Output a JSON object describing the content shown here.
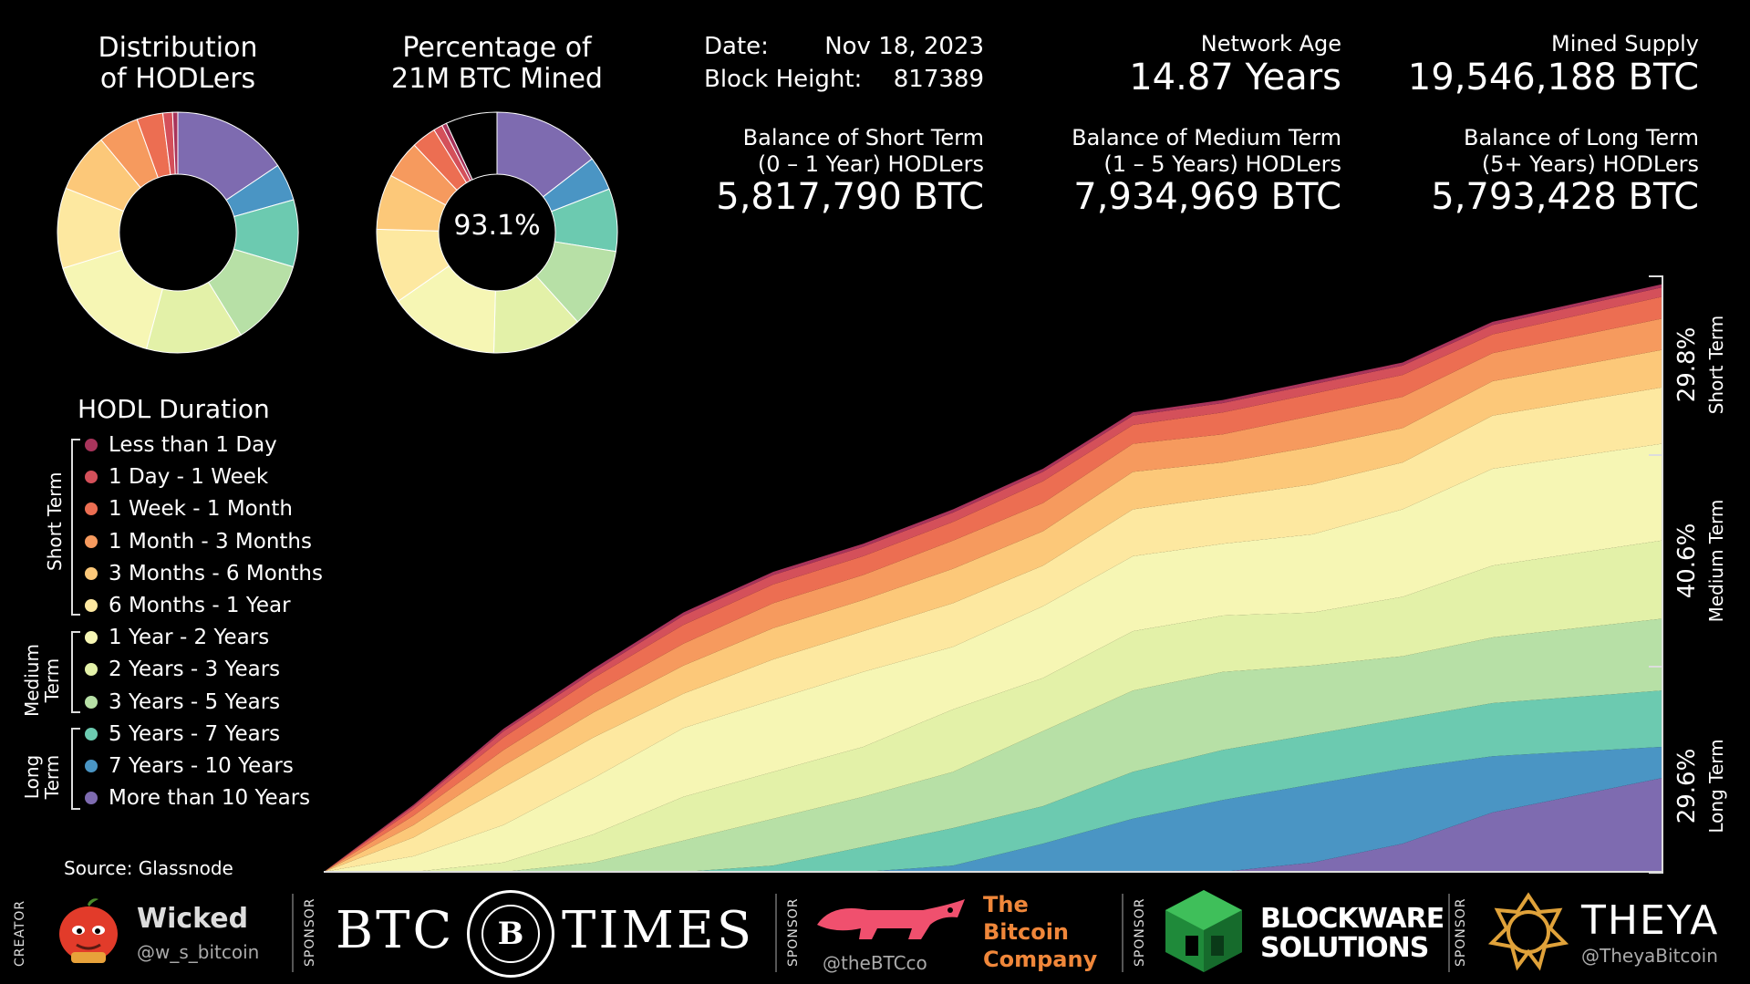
{
  "header": {
    "dist_title_line1": "Distribution",
    "dist_title_line2": "of HODLers",
    "pct_title_line1": "Percentage of",
    "pct_title_line2": "21M BTC Mined",
    "pct_center": "93.1%",
    "date_label": "Date:",
    "date_value": "Nov 18, 2023",
    "block_label": "Block Height:",
    "block_value": "817389",
    "network_age_label": "Network Age",
    "network_age_value": "14.87 Years",
    "mined_supply_label": "Mined Supply",
    "mined_supply_value": "19,546,188 BTC",
    "short_label_1": "Balance of Short Term",
    "short_label_2": "(0 – 1 Year) HODLers",
    "short_value": "5,817,790 BTC",
    "medium_label_1": "Balance of Medium Term",
    "medium_label_2": "(1 – 5 Years) HODLers",
    "medium_value": "7,934,969 BTC",
    "long_label_1": "Balance of Long Term",
    "long_label_2": "(5+ Years) HODLers",
    "long_value": "5,793,428 BTC"
  },
  "legend": {
    "title": "HODL Duration",
    "groups": [
      "Short Term",
      "Medium",
      "Term",
      "Long",
      "Term"
    ],
    "items": [
      {
        "label": "Less than 1 Day",
        "color": "#a8345b"
      },
      {
        "label": "1 Day - 1 Week",
        "color": "#d4505a"
      },
      {
        "label": "1 Week - 1 Month",
        "color": "#ec6e52"
      },
      {
        "label": "1 Month - 3 Months",
        "color": "#f69a5e"
      },
      {
        "label": "3 Months - 6 Months",
        "color": "#fcc879"
      },
      {
        "label": "6 Months - 1 Year",
        "color": "#fde8a0"
      },
      {
        "label": "1 Year - 2 Years",
        "color": "#f6f6b4"
      },
      {
        "label": "2 Years - 3 Years",
        "color": "#e3f1a8"
      },
      {
        "label": "3 Years - 5 Years",
        "color": "#b7e0a6"
      },
      {
        "label": "5 Years - 7 Years",
        "color": "#6ccab0"
      },
      {
        "label": "7 Years - 10 Years",
        "color": "#4a95c4"
      },
      {
        "label": "More than 10 Years",
        "color": "#7e6bb0"
      }
    ]
  },
  "source": "Source: Glassnode",
  "right_axis": {
    "short_pct": "29.8%",
    "short_name": "Short Term",
    "medium_pct": "40.6%",
    "medium_name": "Medium Term",
    "long_pct": "29.6%",
    "long_name": "Long Term"
  },
  "footer": {
    "creator_tag": "CREATOR",
    "creator_name": "Wicked",
    "creator_handle": "@w_s_bitcoin",
    "sponsor_tag": "SPONSOR",
    "btctimes_left": "BTC",
    "btctimes_right": "TIMES",
    "btctimes_emblem": "B",
    "btc_co_1": "The",
    "btc_co_2": "Bitcoin",
    "btc_co_3": "Company",
    "btc_co_handle": "@theBTCco",
    "blockware_1": "BLOCKWARE",
    "blockware_2": "SOLUTIONS",
    "theya_name": "THEYA",
    "theya_handle": "@TheyaBitcoin"
  },
  "chart_data": [
    {
      "type": "pie",
      "title": "",
      "categories": [
        "Less than 1 Day",
        "1 Day - 1 Week",
        "1 Week - 1 Month",
        "1 Month - 3 Months",
        "3 Months - 6 Months",
        "6 Months - 1 Year",
        "1 Year - 2 Years",
        "2 Years - 3 Years",
        "3 Years - 5 Years",
        "5 Years - 7 Years",
        "7 Years - 10 Years",
        "More than 10 Years"
      ],
      "values": [
        0.7,
        1.3,
        3.5,
        5.5,
        8.0,
        10.8,
        16.0,
        13.0,
        11.6,
        9.0,
        5.0,
        15.6
      ],
      "colors": [
        "#a8345b",
        "#d4505a",
        "#ec6e52",
        "#f69a5e",
        "#fcc879",
        "#fde8a0",
        "#f6f6b4",
        "#e3f1a8",
        "#b7e0a6",
        "#6ccab0",
        "#4a95c4",
        "#7e6bb0"
      ]
    },
    {
      "type": "pie",
      "title": "",
      "categories": [
        "Less than 1 Day",
        "1 Day - 1 Week",
        "1 Week - 1 Month",
        "1 Month - 3 Months",
        "3 Months - 6 Months",
        "6 Months - 1 Year",
        "1 Year - 2 Years",
        "2 Years - 3 Years",
        "3 Years - 5 Years",
        "5 Years - 7 Years",
        "7 Years - 10 Years",
        "More than 10 Years",
        "Unmined"
      ],
      "values": [
        0.65,
        1.2,
        3.3,
        5.1,
        7.4,
        10.1,
        14.9,
        12.1,
        10.8,
        8.4,
        4.6,
        14.5,
        6.9
      ],
      "colors": [
        "#a8345b",
        "#d4505a",
        "#ec6e52",
        "#f69a5e",
        "#fcc879",
        "#fde8a0",
        "#f6f6b4",
        "#e3f1a8",
        "#b7e0a6",
        "#6ccab0",
        "#4a95c4",
        "#7e6bb0",
        "#000000"
      ]
    },
    {
      "type": "area",
      "title": "",
      "x": [
        2009,
        2010,
        2011,
        2012,
        2013,
        2014,
        2015,
        2016,
        2017,
        2018,
        2019,
        2020,
        2021,
        2022,
        2023.88
      ],
      "series": [
        {
          "name": "More than 10 Years",
          "values": [
            0,
            0,
            0,
            0,
            0,
            0,
            0,
            0,
            0,
            0,
            0,
            0.3,
            0.9,
            1.9,
            3.0
          ]
        },
        {
          "name": "7 Years - 10 Years",
          "values": [
            0,
            0,
            0,
            0,
            0,
            0,
            0,
            0.2,
            0.9,
            1.7,
            2.3,
            2.5,
            2.4,
            1.8,
            1.0
          ]
        },
        {
          "name": "5 Years - 7 Years",
          "values": [
            0,
            0,
            0,
            0,
            0,
            0.2,
            0.8,
            1.2,
            1.2,
            1.5,
            1.6,
            1.6,
            1.6,
            1.7,
            1.8
          ]
        },
        {
          "name": "3 Years - 5 Years",
          "values": [
            0,
            0,
            0,
            0.3,
            1.0,
            1.5,
            1.6,
            1.8,
            2.4,
            2.6,
            2.5,
            2.2,
            2.0,
            2.1,
            2.3
          ]
        },
        {
          "name": "2 Years - 3 Years",
          "values": [
            0,
            0,
            0.3,
            0.9,
            1.4,
            1.5,
            1.6,
            2.0,
            1.7,
            1.9,
            1.8,
            1.7,
            1.9,
            2.3,
            2.5
          ]
        },
        {
          "name": "1 Year - 2 Years",
          "values": [
            0,
            0.5,
            1.2,
            1.8,
            2.2,
            2.3,
            2.4,
            2.0,
            2.3,
            2.4,
            2.3,
            2.5,
            2.8,
            3.1,
            3.1
          ]
        },
        {
          "name": "6 Months - 1 Year",
          "values": [
            0,
            0.6,
            1.2,
            1.3,
            1.1,
            1.3,
            1.3,
            1.4,
            1.3,
            1.5,
            1.5,
            1.6,
            1.5,
            1.7,
            1.8
          ]
        },
        {
          "name": "3 Months - 6 Months",
          "values": [
            0,
            0.4,
            0.7,
            0.8,
            0.9,
            1.0,
            1.0,
            1.1,
            1.1,
            1.2,
            1.1,
            1.2,
            1.1,
            1.1,
            1.2
          ]
        },
        {
          "name": "1 Month - 3 Months",
          "values": [
            0,
            0.3,
            0.5,
            0.6,
            0.7,
            0.8,
            0.8,
            0.9,
            0.9,
            0.9,
            0.9,
            1.0,
            1.0,
            0.9,
            1.0
          ]
        },
        {
          "name": "1 Week - 1 Month",
          "values": [
            0,
            0.2,
            0.4,
            0.5,
            0.6,
            0.6,
            0.6,
            0.6,
            0.7,
            0.6,
            0.7,
            0.7,
            0.7,
            0.6,
            0.7
          ]
        },
        {
          "name": "1 Day - 1 Week",
          "values": [
            0,
            0.1,
            0.2,
            0.2,
            0.3,
            0.3,
            0.3,
            0.3,
            0.3,
            0.3,
            0.3,
            0.3,
            0.3,
            0.3,
            0.3
          ]
        },
        {
          "name": "Less than 1 Day",
          "values": [
            0,
            0.05,
            0.08,
            0.1,
            0.1,
            0.1,
            0.1,
            0.1,
            0.1,
            0.1,
            0.1,
            0.1,
            0.1,
            0.1,
            0.1
          ]
        }
      ],
      "ylim": [
        0,
        21
      ]
    }
  ]
}
